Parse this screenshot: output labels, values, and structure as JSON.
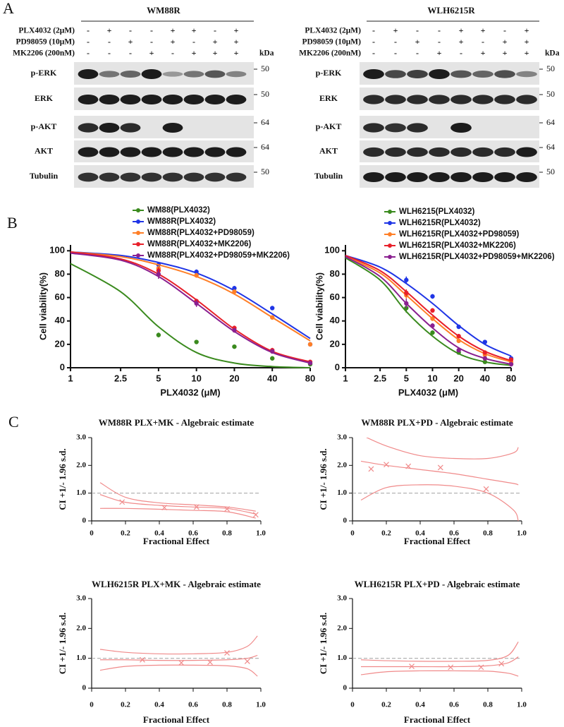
{
  "panel_a": {
    "label": "A",
    "blots": [
      {
        "title": "WM88R",
        "kda_label": "kDa",
        "treatments": [
          {
            "name": "PLX4032 (2μM)",
            "signs": [
              "-",
              "+",
              "-",
              "-",
              "+",
              "+",
              "-",
              "+"
            ]
          },
          {
            "name": "PD98059 (10μM)",
            "signs": [
              "-",
              "-",
              "+",
              "-",
              "+",
              "-",
              "+",
              "+"
            ]
          },
          {
            "name": "MK2206 (200nM)",
            "signs": [
              "-",
              "-",
              "-",
              "+",
              "-",
              "+",
              "+",
              "+"
            ]
          }
        ],
        "rows": [
          {
            "name": "p-ERK",
            "marker": 50
          },
          {
            "name": "ERK",
            "marker": 50
          },
          {
            "name": "p-AKT",
            "marker": 64
          },
          {
            "name": "AKT",
            "marker": 64
          },
          {
            "name": "Tubulin",
            "marker": 50
          }
        ]
      },
      {
        "title": "WLH6215R",
        "kda_label": "kDa",
        "treatments": [
          {
            "name": "PLX4032 (2μM)",
            "signs": [
              "-",
              "+",
              "-",
              "-",
              "+",
              "+",
              "-",
              "+"
            ]
          },
          {
            "name": "PD98059 (10μM)",
            "signs": [
              "-",
              "-",
              "+",
              "-",
              "+",
              "-",
              "+",
              "+"
            ]
          },
          {
            "name": "MK2206 (200nM)",
            "signs": [
              "-",
              "-",
              "-",
              "+",
              "-",
              "+",
              "+",
              "+"
            ]
          }
        ],
        "rows": [
          {
            "name": "p-ERK",
            "marker": 50
          },
          {
            "name": "ERK",
            "marker": 50
          },
          {
            "name": "p-AKT",
            "marker": 64
          },
          {
            "name": "AKT",
            "marker": 64
          },
          {
            "name": "Tubulin",
            "marker": 50
          }
        ]
      }
    ]
  },
  "panel_b_label": "B",
  "panel_c_label": "C",
  "chart_data": [
    {
      "type": "line",
      "xlabel": "PLX4032 (μM)",
      "ylabel": "Cell viability(%)",
      "log_x": true,
      "xlim": [
        1,
        80
      ],
      "xticks": [
        1,
        2.5,
        5,
        10,
        20,
        40,
        80
      ],
      "ylim": [
        0,
        105
      ],
      "yticks": [
        0,
        20,
        40,
        60,
        80,
        100
      ],
      "x": [
        5,
        10,
        20,
        40,
        80
      ],
      "fit_x": [
        1,
        2.5,
        5,
        10,
        20,
        40,
        80
      ],
      "series": [
        {
          "name": "WM88(PLX4032)",
          "color": "#3a8a1e",
          "values": [
            28,
            22,
            18,
            8,
            3
          ],
          "errors": [
            2,
            1,
            1,
            1,
            1
          ],
          "fit": [
            89,
            65,
            35,
            13,
            4,
            1,
            0
          ]
        },
        {
          "name": "WM88R(PLX4032)",
          "color": "#1f35e6",
          "values": [
            88,
            82,
            68,
            51,
            20
          ],
          "errors": [
            2,
            2,
            2,
            1,
            1
          ],
          "fit": [
            99,
            96,
            90,
            81,
            66,
            46,
            25
          ]
        },
        {
          "name": "WM88R(PLX4032+PD98059)",
          "color": "#ff7f27",
          "values": [
            85,
            79,
            65,
            43,
            20
          ],
          "errors": [
            2,
            2,
            2,
            1,
            1
          ],
          "fit": [
            99,
            95,
            88,
            78,
            63,
            43,
            23
          ]
        },
        {
          "name": "WM88R(PLX4032+MK2206)",
          "color": "#e8202a",
          "values": [
            83,
            57,
            34,
            15,
            5
          ],
          "errors": [
            3,
            2,
            2,
            2,
            1
          ],
          "fit": [
            99,
            93,
            80,
            58,
            33,
            14,
            5
          ]
        },
        {
          "name": "WM88R(PLX4032+PD98059+MK2206)",
          "color": "#8a2090",
          "values": [
            80,
            55,
            32,
            14,
            4
          ],
          "errors": [
            4,
            3,
            2,
            2,
            1
          ],
          "fit": [
            98,
            92,
            78,
            55,
            31,
            13,
            4
          ]
        }
      ]
    },
    {
      "type": "line",
      "xlabel": "PLX4032 (μM)",
      "ylabel": "Cell viability(%)",
      "log_x": true,
      "xlim": [
        1,
        80
      ],
      "xticks": [
        1,
        2.5,
        5,
        10,
        20,
        40,
        80
      ],
      "ylim": [
        0,
        105
      ],
      "yticks": [
        0,
        20,
        40,
        60,
        80,
        100
      ],
      "x": [
        5,
        10,
        20,
        40,
        80
      ],
      "fit_x": [
        1,
        2.5,
        5,
        10,
        20,
        40,
        80
      ],
      "series": [
        {
          "name": "WLH6215(PLX4032)",
          "color": "#3a8a1e",
          "values": [
            51,
            30,
            13,
            5,
            3
          ],
          "errors": [
            4,
            2,
            1,
            1,
            1
          ],
          "fit": [
            94,
            75,
            48,
            27,
            12,
            5,
            2
          ]
        },
        {
          "name": "WLH6215R(PLX4032)",
          "color": "#1f35e6",
          "values": [
            75,
            61,
            35,
            22,
            8
          ],
          "errors": [
            3,
            2,
            1,
            1,
            1
          ],
          "fit": [
            96,
            86,
            72,
            55,
            36,
            20,
            10
          ]
        },
        {
          "name": "WLH6215R(PLX4032+PD98059)",
          "color": "#ff7f27",
          "values": [
            62,
            42,
            23,
            11,
            5
          ],
          "errors": [
            3,
            2,
            1,
            1,
            1
          ],
          "fit": [
            95,
            81,
            62,
            42,
            24,
            12,
            5
          ]
        },
        {
          "name": "WLH6215R(PLX4032+MK2206)",
          "color": "#e8202a",
          "values": [
            64,
            49,
            27,
            13,
            7
          ],
          "errors": [
            3,
            2,
            1,
            1,
            1
          ],
          "fit": [
            96,
            83,
            65,
            45,
            27,
            14,
            6
          ]
        },
        {
          "name": "WLH6215R(PLX4032+PD98059+MK2206)",
          "color": "#8a2090",
          "values": [
            55,
            36,
            15,
            8,
            3
          ],
          "errors": [
            4,
            2,
            1,
            1,
            1
          ],
          "fit": [
            95,
            78,
            55,
            34,
            17,
            8,
            3
          ]
        }
      ]
    },
    {
      "type": "scatter",
      "title": "WM88R PLX+MK - Algebraic estimate",
      "xlabel": "Fractional Effect",
      "ylabel": "CI +1/- 1.96 s.d.",
      "xlim": [
        0,
        1
      ],
      "xticks": [
        0,
        0.2,
        0.4,
        0.6,
        0.8,
        {
          "value": 1,
          "label": "1.0"
        }
      ],
      "ylim": [
        0,
        3
      ],
      "yticks": [
        0,
        {
          "value": 1,
          "label": "1.0"
        },
        {
          "value": 2,
          "label": "2.0"
        },
        {
          "value": 3,
          "label": "3.0"
        }
      ],
      "reference_y": 1,
      "color": "#f08a8a",
      "x": [
        0.18,
        0.43,
        0.62,
        0.8,
        0.97
      ],
      "values": [
        0.68,
        0.48,
        0.5,
        0.43,
        0.22
      ],
      "curves": [
        {
          "x": [
            0.05,
            0.2,
            0.4,
            0.6,
            0.8,
            0.97
          ],
          "values": [
            1.38,
            0.85,
            0.65,
            0.58,
            0.5,
            0.35
          ]
        },
        {
          "x": [
            0.05,
            0.2,
            0.4,
            0.6,
            0.8,
            0.97
          ],
          "values": [
            0.95,
            0.67,
            0.56,
            0.5,
            0.45,
            0.25
          ]
        },
        {
          "x": [
            0.05,
            0.2,
            0.4,
            0.6,
            0.8,
            0.97
          ],
          "values": [
            0.45,
            0.45,
            0.42,
            0.38,
            0.33,
            0.1
          ]
        }
      ]
    },
    {
      "type": "scatter",
      "title": "WM88R PLX+PD - Algebraic estimate",
      "xlabel": "Fractional Effect",
      "ylabel": "CI +1/- 1.96 s.d.",
      "xlim": [
        0,
        1
      ],
      "xticks": [
        0,
        0.2,
        0.4,
        0.6,
        0.8,
        {
          "value": 1,
          "label": "1.0"
        }
      ],
      "ylim": [
        0,
        3
      ],
      "yticks": [
        0,
        {
          "value": 1,
          "label": "1.0"
        },
        {
          "value": 2,
          "label": "2.0"
        },
        {
          "value": 3,
          "label": "3.0"
        }
      ],
      "reference_y": 1,
      "color": "#f08a8a",
      "x": [
        0.11,
        0.2,
        0.33,
        0.52,
        0.79
      ],
      "values": [
        1.87,
        2.03,
        1.97,
        1.92,
        1.15
      ],
      "curves": [
        {
          "x": [
            0.05,
            0.2,
            0.4,
            0.6,
            0.8,
            0.95,
            0.98
          ],
          "values": [
            3.1,
            2.7,
            2.35,
            2.25,
            2.25,
            2.45,
            2.65
          ]
        },
        {
          "x": [
            0.05,
            0.2,
            0.4,
            0.6,
            0.8,
            0.95,
            0.98
          ],
          "values": [
            2.15,
            2.0,
            1.85,
            1.7,
            1.5,
            1.35,
            1.3
          ]
        },
        {
          "x": [
            0.05,
            0.2,
            0.4,
            0.6,
            0.8,
            0.95,
            0.98
          ],
          "values": [
            0.75,
            1.2,
            1.3,
            1.25,
            1.0,
            0.4,
            0
          ]
        }
      ]
    },
    {
      "type": "scatter",
      "title": "WLH6215R PLX+MK - Algebraic estimate",
      "xlabel": "Fractional Effect",
      "ylabel": "CI +1/- 1.96 s.d.",
      "xlim": [
        0,
        1
      ],
      "xticks": [
        0,
        0.2,
        0.4,
        0.6,
        0.8,
        {
          "value": 1,
          "label": "1.0"
        }
      ],
      "ylim": [
        0,
        3
      ],
      "yticks": [
        0,
        {
          "value": 1,
          "label": "1.0"
        },
        {
          "value": 2,
          "label": "2.0"
        },
        {
          "value": 3,
          "label": "3.0"
        }
      ],
      "reference_y": 1,
      "color": "#f08a8a",
      "x": [
        0.3,
        0.53,
        0.7,
        0.8,
        0.92
      ],
      "values": [
        0.95,
        0.85,
        0.87,
        1.18,
        0.9
      ],
      "curves": [
        {
          "x": [
            0.05,
            0.2,
            0.4,
            0.6,
            0.8,
            0.92,
            0.98
          ],
          "values": [
            1.3,
            1.2,
            1.15,
            1.15,
            1.2,
            1.4,
            1.75
          ]
        },
        {
          "x": [
            0.05,
            0.2,
            0.4,
            0.6,
            0.8,
            0.92,
            0.98
          ],
          "values": [
            0.95,
            0.95,
            0.93,
            0.93,
            0.95,
            1.0,
            1.1
          ]
        },
        {
          "x": [
            0.05,
            0.2,
            0.4,
            0.6,
            0.8,
            0.92,
            0.98
          ],
          "values": [
            0.6,
            0.73,
            0.77,
            0.77,
            0.75,
            0.65,
            0.4
          ]
        }
      ]
    },
    {
      "type": "scatter",
      "title": "WLH6215R PLX+PD - Algebraic estimate",
      "xlabel": "Fractional Effect",
      "ylabel": "CI +1/- 1.96 s.d.",
      "xlim": [
        0,
        1
      ],
      "xticks": [
        0,
        0.2,
        0.4,
        0.6,
        0.8,
        {
          "value": 1,
          "label": "1.0"
        }
      ],
      "ylim": [
        0,
        3
      ],
      "yticks": [
        0,
        {
          "value": 1,
          "label": "1.0"
        },
        {
          "value": 2,
          "label": "2.0"
        },
        {
          "value": 3,
          "label": "3.0"
        }
      ],
      "reference_y": 1,
      "color": "#f08a8a",
      "x": [
        0.35,
        0.58,
        0.76,
        0.88
      ],
      "values": [
        0.73,
        0.7,
        0.7,
        0.82
      ],
      "curves": [
        {
          "x": [
            0.05,
            0.2,
            0.4,
            0.6,
            0.8,
            0.92,
            0.98
          ],
          "values": [
            0.95,
            0.92,
            0.9,
            0.9,
            0.93,
            1.1,
            1.55
          ]
        },
        {
          "x": [
            0.05,
            0.2,
            0.4,
            0.6,
            0.8,
            0.92,
            0.98
          ],
          "values": [
            0.72,
            0.72,
            0.72,
            0.72,
            0.75,
            0.85,
            1.05
          ]
        },
        {
          "x": [
            0.05,
            0.2,
            0.4,
            0.6,
            0.8,
            0.92,
            0.98
          ],
          "values": [
            0.45,
            0.55,
            0.58,
            0.58,
            0.57,
            0.5,
            0.4
          ]
        }
      ]
    }
  ]
}
